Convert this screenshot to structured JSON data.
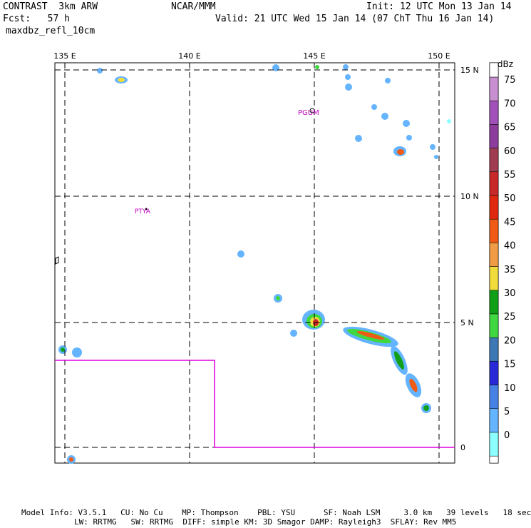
{
  "header": {
    "model_title": "CONTRAST  3km ARW",
    "forecast_hour": "Fcst:   57 h",
    "field_name": "maxdbz_refl_10cm",
    "center": "NCAR/MMM",
    "init_time": "Init: 12 UTC Mon 13 Jan 14",
    "valid_time": "Valid: 21 UTC Wed 15 Jan 14 (07 ChT Thu 16 Jan 14)"
  },
  "map": {
    "lon_labels": [
      "135 E",
      "140 E",
      "145 E",
      "150 E"
    ],
    "lat_labels": [
      "15 N",
      "10 N",
      "5 N",
      "0"
    ],
    "place_labels": [
      "PGUM",
      "PTYA"
    ]
  },
  "colorbar": {
    "unit": "dBz",
    "levels": [
      "75",
      "70",
      "65",
      "60",
      "55",
      "50",
      "45",
      "40",
      "35",
      "30",
      "25",
      "20",
      "15",
      "10",
      "5",
      "0"
    ],
    "colors": [
      "#c890d0",
      "#a050b8",
      "#8c3c9c",
      "#a03c50",
      "#c82828",
      "#e02810",
      "#f05a14",
      "#f09c46",
      "#f0dc3c",
      "#10a018",
      "#40d840",
      "#3c78b4",
      "#2828d8",
      "#4682e6",
      "#64b4ff",
      "#8cffff"
    ]
  },
  "footer": {
    "line1": "Model Info: V3.5.1   CU: No Cu    MP: Thompson    PBL: YSU      SF: Noah LSM     3.0 km   39 levels   18 sec",
    "line2": "LW: RRTMG   SW: RRTMG  DIFF: simple KM: 3D Smagor DAMP: Rayleigh3  SFLAY: Rev MM5"
  }
}
